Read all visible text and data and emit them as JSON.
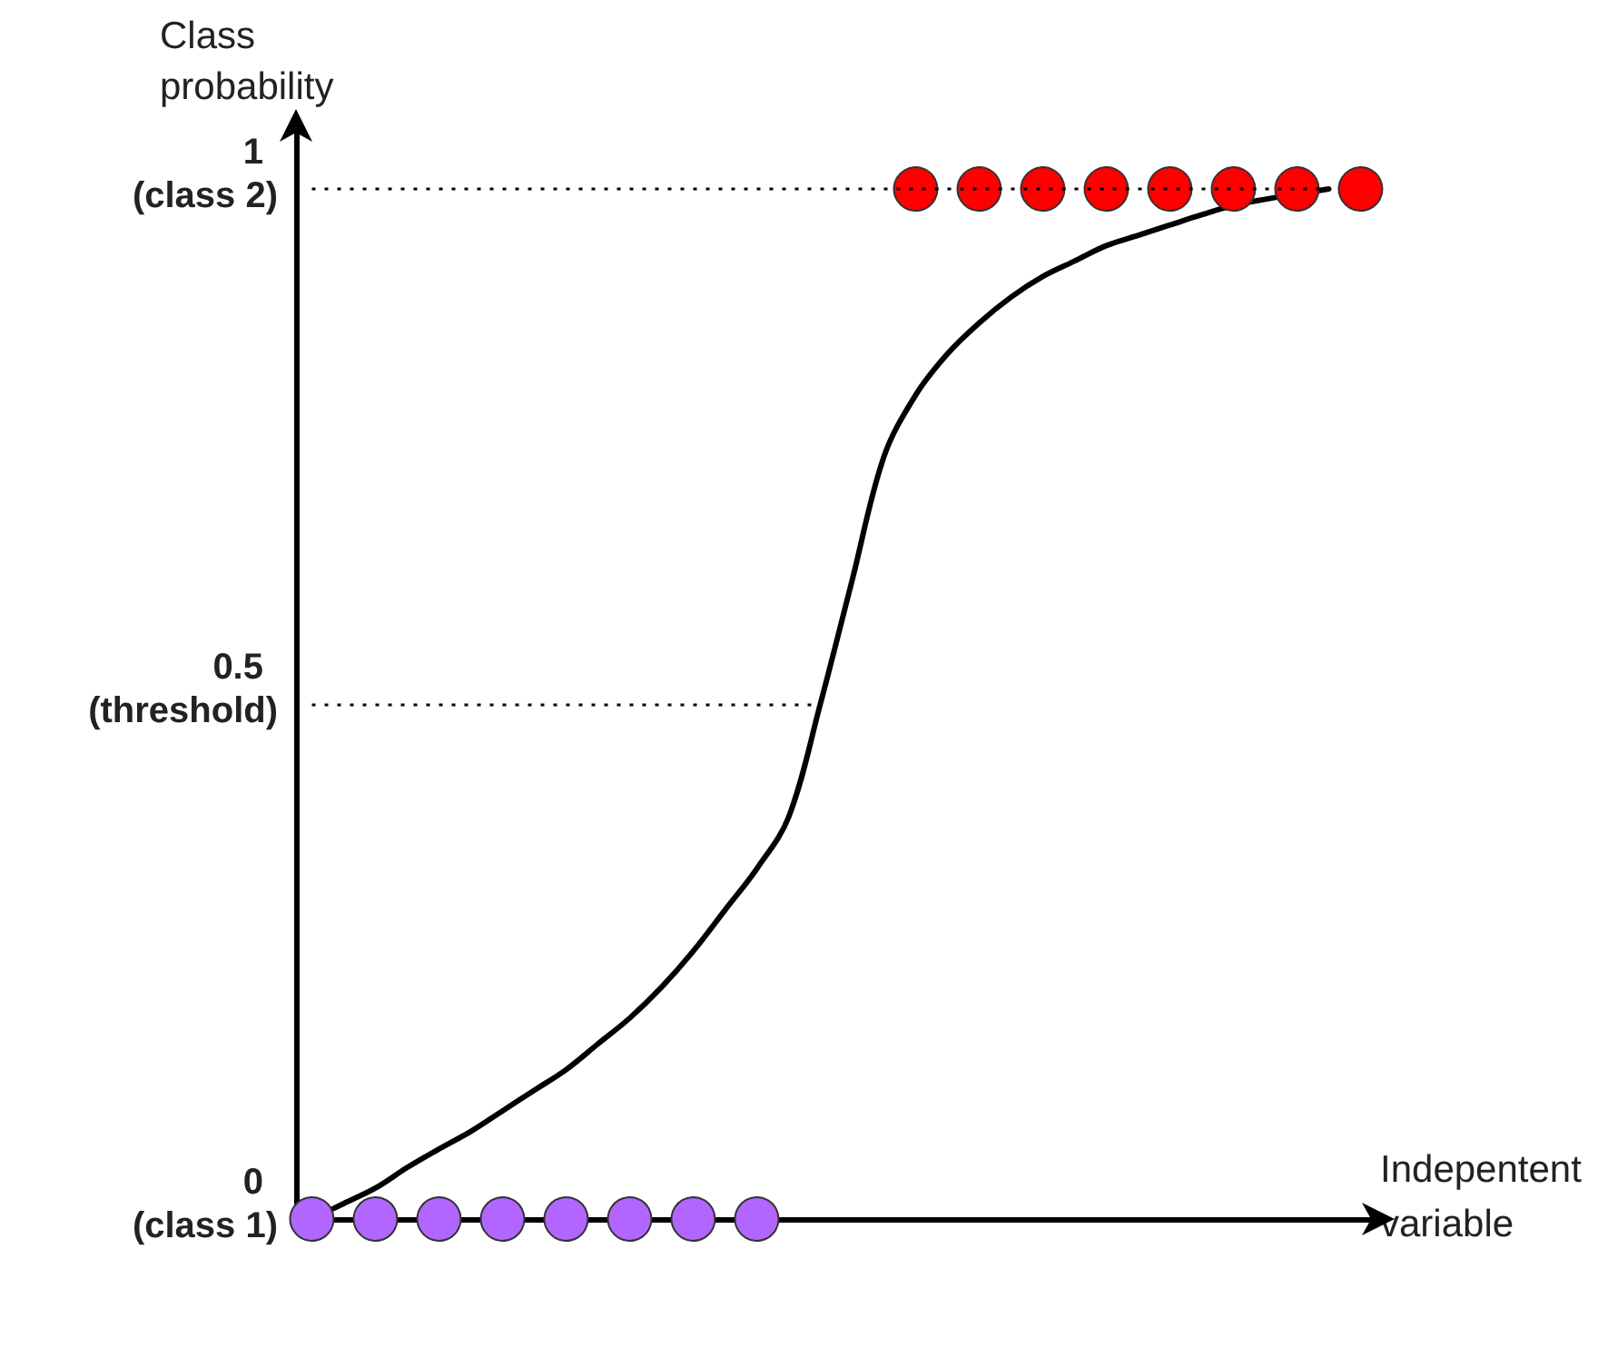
{
  "chart_data": {
    "type": "line",
    "ylabel": "Class probability",
    "xlabel": "Indepentent variable",
    "categories": [
      null,
      null,
      null,
      null,
      null,
      null,
      null,
      null,
      null,
      null,
      null,
      null,
      null,
      null,
      null,
      null,
      null,
      null,
      null,
      null,
      null,
      null,
      null,
      null,
      null,
      null,
      null,
      null,
      null,
      null,
      null,
      null,
      null,
      null
    ],
    "series": [
      {
        "color": "#000000",
        "marker": "none",
        "values": [
          0,
          0.015,
          0.03,
          0.05,
          0.068,
          0.085,
          0.105,
          0.125,
          0.145,
          0.17,
          0.195,
          0.225,
          0.26,
          0.3,
          0.34,
          0.39,
          0.5,
          0.62,
          0.74,
          0.8,
          0.84,
          0.87,
          0.895,
          0.915,
          0.93,
          0.945,
          0.955,
          0.965,
          0.975,
          0.984,
          0.99,
          0.995,
          1,
          null
        ]
      },
      {
        "type": "scatter",
        "color": "#b266ff",
        "marker": "circle",
        "values": [
          0,
          null,
          0,
          null,
          0,
          null,
          0,
          null,
          0,
          null,
          0,
          null,
          0,
          null,
          0,
          null,
          null,
          null,
          null,
          null,
          null,
          null,
          null,
          null,
          null,
          null,
          null,
          null,
          null,
          null,
          null,
          null,
          null,
          null
        ]
      },
      {
        "type": "scatter",
        "color": "#ff0000",
        "marker": "circle",
        "values": [
          null,
          null,
          null,
          null,
          null,
          null,
          null,
          null,
          null,
          null,
          null,
          null,
          null,
          null,
          null,
          null,
          null,
          null,
          null,
          1,
          null,
          1,
          null,
          1,
          null,
          1,
          null,
          1,
          null,
          1,
          null,
          1,
          null,
          1
        ]
      }
    ],
    "ylim": [
      0,
      1.06
    ],
    "yticks": [
      0,
      0.5,
      1
    ],
    "annotations": [
      "(class 1)",
      "(threshold)",
      "(class 2)"
    ],
    "ref_lines": [
      {
        "axis": "y",
        "value": 0.5,
        "line_style": "dotted"
      },
      {
        "axis": "y",
        "value": 1,
        "line_style": "dotted"
      }
    ],
    "tick_labels": "y"
  }
}
